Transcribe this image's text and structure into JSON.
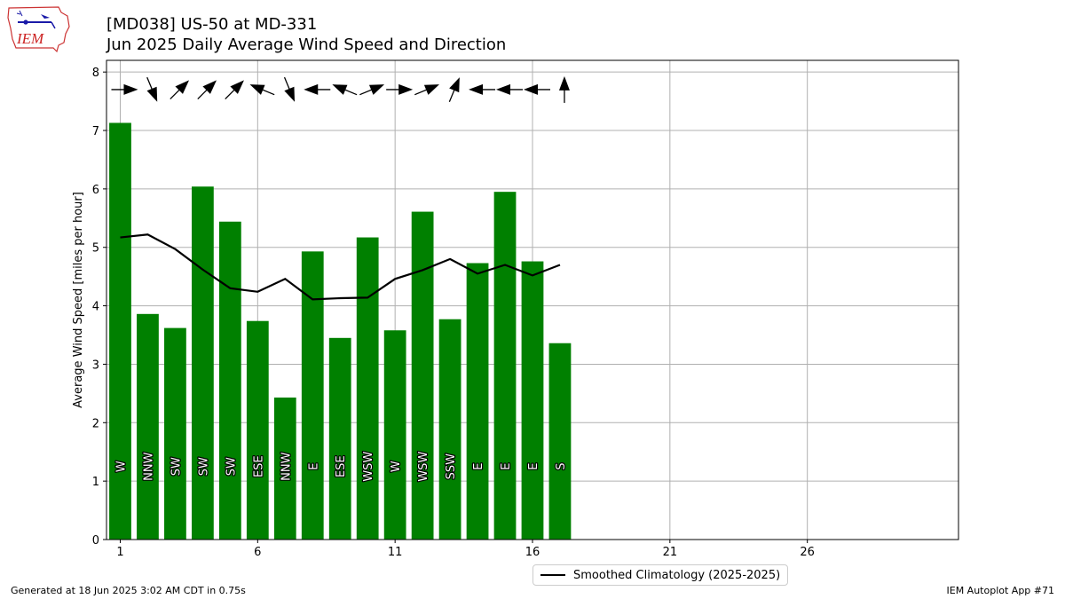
{
  "header": {
    "title_line1": "[MD038] US-50 at MD-331",
    "title_line2": "Jun 2025 Daily Average Wind Speed and Direction",
    "logo_text": "IEM"
  },
  "footer": {
    "left": "Generated at 18 Jun 2025 3:02 AM CDT in 0.75s",
    "right": "IEM Autoplot App #71"
  },
  "colors": {
    "bar": "#008000",
    "line": "#000000",
    "grid": "#b0b0b0",
    "arrow": "#000000"
  },
  "chart_data": {
    "type": "bar",
    "ylabel": "Average Wind Speed [miles per hour]",
    "xlim": [
      0.5,
      31.5
    ],
    "ylim": [
      0,
      8.2
    ],
    "xticks": [
      1,
      6,
      11,
      16,
      21,
      26
    ],
    "yticks": [
      0,
      1,
      2,
      3,
      4,
      5,
      6,
      7,
      8
    ],
    "grid": true,
    "legend_position": "below-center",
    "days": [
      1,
      2,
      3,
      4,
      5,
      6,
      7,
      8,
      9,
      10,
      11,
      12,
      13,
      14,
      15,
      16,
      17
    ],
    "values": [
      7.13,
      3.86,
      3.62,
      6.04,
      5.44,
      3.74,
      2.43,
      4.93,
      3.45,
      5.17,
      3.58,
      5.61,
      3.77,
      4.73,
      5.95,
      4.76,
      3.36
    ],
    "directions": [
      "W",
      "NNW",
      "SW",
      "SW",
      "SW",
      "ESE",
      "NNW",
      "E",
      "ESE",
      "WSW",
      "W",
      "WSW",
      "SSW",
      "E",
      "E",
      "E",
      "S"
    ],
    "wind_from_degrees": [
      270,
      337.5,
      225,
      225,
      225,
      112.5,
      337.5,
      90,
      112.5,
      247.5,
      270,
      247.5,
      202.5,
      90,
      90,
      90,
      180
    ],
    "series": [
      {
        "name": "Smoothed Climatology (2025-2025)",
        "type": "line",
        "values": [
          5.17,
          5.22,
          4.97,
          4.62,
          4.3,
          4.24,
          4.46,
          4.11,
          4.13,
          4.14,
          4.46,
          4.61,
          4.8,
          4.55,
          4.7,
          4.52,
          4.7
        ]
      }
    ]
  }
}
